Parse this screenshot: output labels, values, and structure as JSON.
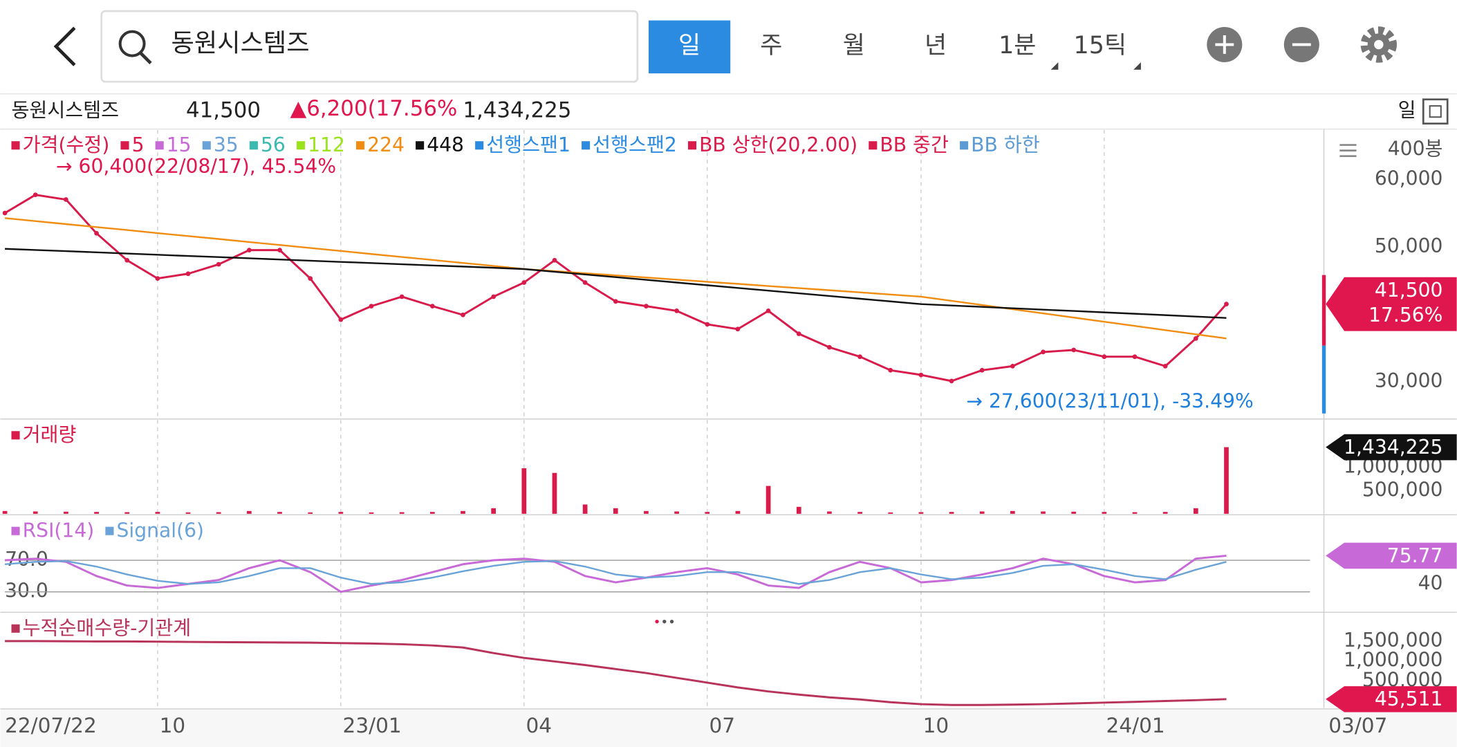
{
  "header": {
    "search": "동원시스템즈",
    "tabs": [
      "일",
      "주",
      "월",
      "년",
      "1분",
      "15틱"
    ],
    "active_tab": 0
  },
  "info": {
    "name": "동원시스템즈",
    "change": "▲6,200(17.56%",
    "period": "일"
  },
  "last_date": "03/07",
  "chart_data": [
    {
      "type": "line",
      "note_label": "400봉",
      "change_pct": "17.56%",
      "categories": [
        "22/07/22",
        null,
        null,
        null,
        null,
        "10",
        null,
        null,
        null,
        null,
        null,
        "23/01",
        null,
        null,
        null,
        null,
        null,
        "04",
        null,
        null,
        null,
        null,
        null,
        "07",
        null,
        null,
        null,
        null,
        null,
        null,
        "10",
        null,
        null,
        null,
        null,
        null,
        "24/01",
        null,
        null,
        null,
        null
      ],
      "annotations": [
        {
          "text": "→ 60,400(22/08/17), 45.54%",
          "color": "#e0174f"
        },
        {
          "text": "→ 27,600(23/11/01), -33.49%",
          "color": "#1f7fdc"
        }
      ],
      "ylim": [
        24600,
        67300
      ],
      "yticks": [
        {
          "value": 30000,
          "label": "30,000"
        },
        {
          "value": 50000,
          "label": "50,000"
        },
        {
          "value": 60000,
          "label": "60,000"
        }
      ],
      "series": [
        {
          "name": "가격(수정)",
          "color": "#d81b4a",
          "values": [
            55000,
            57700,
            57000,
            52000,
            48000,
            45300,
            46000,
            47400,
            49500,
            49500,
            45300,
            39200,
            41200,
            42600,
            41200,
            39900,
            42600,
            44700,
            48000,
            44700,
            41900,
            41200,
            40500,
            38500,
            37800,
            40500,
            37100,
            35100,
            33700,
            31700,
            31000,
            30100,
            31700,
            32300,
            34400,
            34700,
            33700,
            33700,
            32300,
            36400,
            41500
          ],
          "value_labels": [
            null,
            null,
            null,
            null,
            null,
            null,
            null,
            null,
            null,
            null,
            null,
            null,
            null,
            null,
            null,
            null,
            null,
            null,
            null,
            null,
            null,
            null,
            null,
            null,
            null,
            null,
            null,
            null,
            null,
            null,
            null,
            null,
            null,
            null,
            null,
            null,
            null,
            null,
            null,
            null,
            "41,500"
          ]
        },
        {
          "name": "5",
          "color": "#d81b4a"
        },
        {
          "name": "15",
          "color": "#c76ad8"
        },
        {
          "name": "35",
          "color": "#6aa3d8"
        },
        {
          "name": "56",
          "color": "#3dbab0"
        },
        {
          "name": "112",
          "color": "#9be31a"
        },
        {
          "name": "224",
          "color": "#f08c12",
          "values": [
            54250,
            53800,
            53360,
            52920,
            52480,
            52030,
            51590,
            51150,
            50700,
            50260,
            49820,
            49380,
            48930,
            48490,
            48050,
            47600,
            47160,
            46700,
            46390,
            46070,
            45760,
            45440,
            45130,
            44810,
            44500,
            44180,
            43870,
            43550,
            43240,
            42920,
            42600,
            41980,
            41360,
            40740,
            40120,
            39500,
            38880,
            38260,
            37640,
            37020,
            36400
          ]
        },
        {
          "name": "448",
          "color": "#111111",
          "values": [
            49700,
            49520,
            49350,
            49170,
            48990,
            48820,
            48640,
            48470,
            48290,
            48110,
            47940,
            47760,
            47590,
            47410,
            47230,
            47060,
            46880,
            46700,
            46300,
            45900,
            45500,
            45100,
            44700,
            44300,
            43900,
            43500,
            43100,
            42700,
            42300,
            41900,
            41500,
            41300,
            41090,
            40880,
            40680,
            40480,
            40270,
            40070,
            39860,
            39660,
            39450
          ]
        },
        {
          "name": "선행스팬1",
          "color": "#2a8be0"
        },
        {
          "name": "선행스팬2",
          "color": "#2a8be0"
        },
        {
          "name": "BB 상한(20,2.00)",
          "color": "#d81b4a"
        },
        {
          "name": "BB 중간",
          "color": "#d81b4a"
        },
        {
          "name": "BB 하한",
          "color": "#5b9bd5"
        }
      ]
    },
    {
      "type": "bar",
      "ylim": [
        0,
        2020000
      ],
      "yticks": [
        {
          "value": 500000,
          "label": "500,000"
        },
        {
          "value": 1000000,
          "label": "1,000,000"
        }
      ],
      "series": [
        {
          "name": "거래량",
          "color": "#d81b4a",
          "values": [
            60000,
            50000,
            45000,
            40000,
            35000,
            40000,
            30000,
            35000,
            60000,
            40000,
            30000,
            40000,
            30000,
            35000,
            40000,
            60000,
            120000,
            980000,
            880000,
            200000,
            120000,
            60000,
            50000,
            40000,
            60000,
            600000,
            150000,
            50000,
            40000,
            30000,
            35000,
            40000,
            50000,
            60000,
            50000,
            45000,
            40000,
            35000,
            40000,
            120000,
            1434225
          ],
          "value_labels": [
            null,
            null,
            null,
            null,
            null,
            null,
            null,
            null,
            null,
            null,
            null,
            null,
            null,
            null,
            null,
            null,
            null,
            null,
            null,
            null,
            null,
            null,
            null,
            null,
            null,
            null,
            null,
            null,
            null,
            null,
            null,
            null,
            null,
            null,
            null,
            null,
            null,
            null,
            null,
            null,
            "1,434,225"
          ]
        }
      ]
    },
    {
      "type": "line",
      "ylim": [
        5.3,
        126.5
      ],
      "grid": true,
      "yticks": [
        {
          "value": 30,
          "label": "30.0"
        },
        {
          "value": 70,
          "label": "70.0"
        }
      ],
      "y2lim": [
        5.3,
        126.5
      ],
      "y2ticks": [
        40
      ],
      "series": [
        {
          "name": "RSI(14)",
          "color": "#c76ad8",
          "values": [
            70,
            72,
            68,
            50,
            38,
            35,
            40,
            45,
            60,
            70,
            55,
            30,
            38,
            45,
            55,
            65,
            70,
            72,
            68,
            50,
            42,
            48,
            55,
            60,
            52,
            38,
            35,
            55,
            68,
            60,
            42,
            45,
            52,
            60,
            72,
            65,
            50,
            42,
            45,
            72,
            75.77
          ]
        },
        {
          "name": "Signal(6)",
          "color": "#6aa3d8",
          "values": [
            65,
            68,
            69,
            62,
            52,
            44,
            40,
            42,
            50,
            60,
            60,
            48,
            40,
            42,
            48,
            56,
            63,
            68,
            69,
            62,
            52,
            48,
            50,
            55,
            55,
            48,
            40,
            45,
            55,
            60,
            52,
            46,
            48,
            54,
            63,
            65,
            58,
            50,
            46,
            58,
            68
          ]
        }
      ]
    },
    {
      "type": "line",
      "ylim": [
        -174400,
        2197700
      ],
      "yticks": [
        {
          "value": 500000,
          "label": "500,000"
        },
        {
          "value": 1000000,
          "label": "1,000,000"
        },
        {
          "value": 1500000,
          "label": "1,500,000"
        }
      ],
      "series": [
        {
          "name": "누적순매수량-기관계",
          "color": "#b8335a",
          "values": [
            1500000,
            1500000,
            1495000,
            1490000,
            1490000,
            1485000,
            1480000,
            1475000,
            1470000,
            1465000,
            1460000,
            1450000,
            1440000,
            1420000,
            1390000,
            1340000,
            1200000,
            1080000,
            990000,
            900000,
            800000,
            700000,
            580000,
            460000,
            340000,
            240000,
            160000,
            90000,
            40000,
            -30000,
            -80000,
            -100000,
            -100000,
            -90000,
            -80000,
            -60000,
            -40000,
            -20000,
            0,
            20000,
            45511
          ],
          "value_labels": [
            null,
            null,
            null,
            null,
            null,
            null,
            null,
            null,
            null,
            null,
            null,
            null,
            null,
            null,
            null,
            null,
            null,
            null,
            null,
            null,
            null,
            null,
            null,
            null,
            null,
            null,
            null,
            null,
            null,
            null,
            null,
            null,
            null,
            null,
            null,
            null,
            null,
            null,
            null,
            null,
            "45,511"
          ]
        }
      ]
    }
  ]
}
